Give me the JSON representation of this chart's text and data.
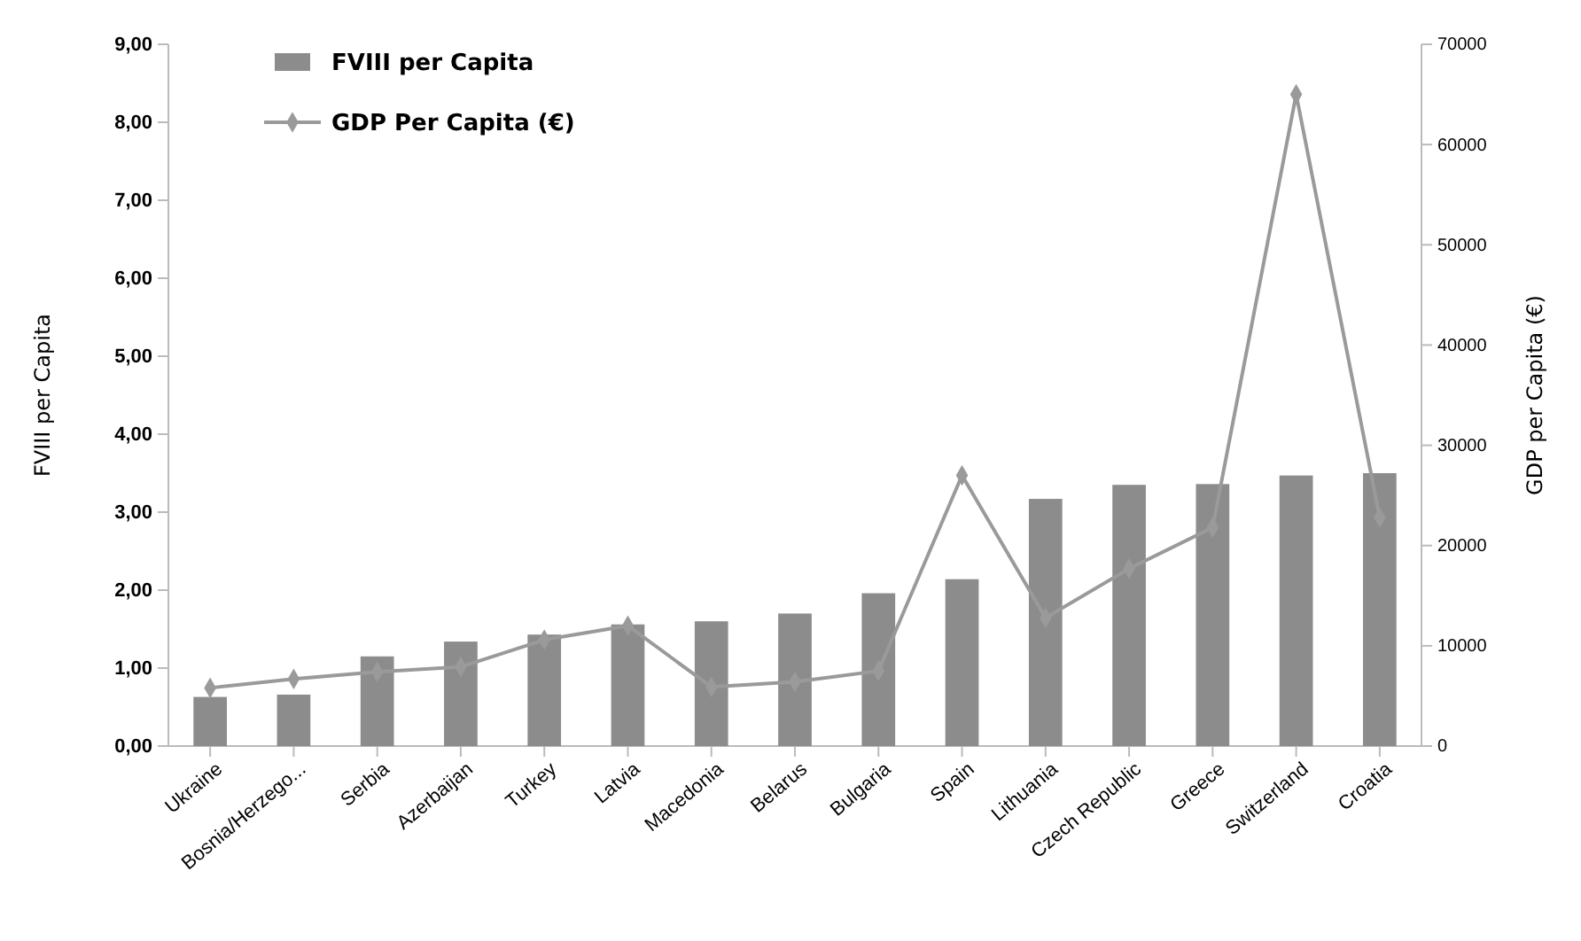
{
  "chart_data": {
    "type": "bar",
    "ylabel": "FVIII per Capita",
    "y2label": "GDP per Capita (€)",
    "categories": [
      "Ukraine",
      "Bosnia/Herzego...",
      "Serbia",
      "Azerbaijan",
      "Turkey",
      "Latvia",
      "Macedonia",
      "Belarus",
      "Bulgaria",
      "Spain",
      "Lithuania",
      "Czech Republic",
      "Greece",
      "Switzerland",
      "Croatia"
    ],
    "series": [
      {
        "name": "FVIII per Capita",
        "color": "#8c8c8c",
        "values": [
          0.63,
          0.66,
          1.15,
          1.34,
          1.43,
          1.56,
          1.6,
          1.7,
          1.96,
          2.14,
          3.17,
          3.35,
          3.36,
          3.47,
          3.5
        ]
      },
      {
        "name": "GDP Per Capita (€)",
        "type": "line",
        "axis": "y2",
        "color": "#9a9a9a",
        "marker": "diamond",
        "values": [
          5800,
          6700,
          7400,
          7900,
          10600,
          12000,
          5900,
          6400,
          7500,
          27000,
          12800,
          17700,
          21800,
          65000,
          22800
        ]
      }
    ],
    "ylim": [
      0,
      9
    ],
    "yticks": [
      {
        "value": 0,
        "label": "0,00"
      },
      {
        "value": 1,
        "label": "1,00"
      },
      {
        "value": 2,
        "label": "2,00"
      },
      {
        "value": 3,
        "label": "3,00"
      },
      {
        "value": 4,
        "label": "4,00"
      },
      {
        "value": 5,
        "label": "5,00"
      },
      {
        "value": 6,
        "label": "6,00"
      },
      {
        "value": 7,
        "label": "7,00"
      },
      {
        "value": 8,
        "label": "8,00"
      },
      {
        "value": 9,
        "label": "9,00"
      }
    ],
    "y2lim": [
      0,
      70000
    ],
    "y2ticks": [
      0,
      10000,
      20000,
      30000,
      40000,
      50000,
      60000,
      70000
    ],
    "legend": "top left",
    "grid": false
  }
}
